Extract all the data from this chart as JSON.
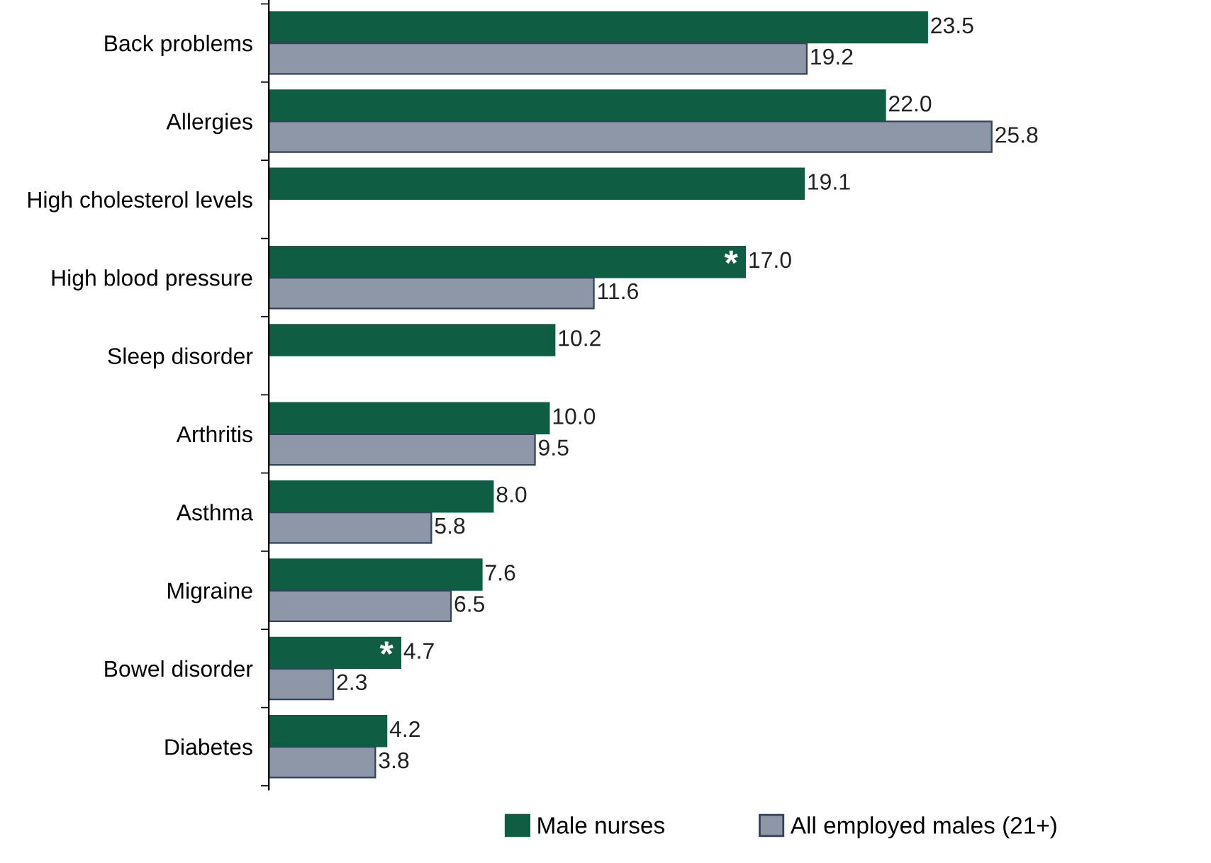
{
  "chart_data": {
    "type": "bar",
    "orientation": "horizontal",
    "categories": [
      "Back problems",
      "Allergies",
      "High cholesterol levels",
      "High blood pressure",
      "Sleep disorder",
      "Arthritis",
      "Asthma",
      "Migraine",
      "Bowel disorder",
      "Diabetes"
    ],
    "series": [
      {
        "name": "Male nurses",
        "color": "#0f5e44",
        "values": [
          23.5,
          22.0,
          19.1,
          17.0,
          10.2,
          10.0,
          8.0,
          7.6,
          4.7,
          4.2
        ],
        "value_labels": [
          "23.5",
          "22.0",
          "19.1",
          "17.0",
          "10.2",
          "10.0",
          "8.0",
          "7.6",
          "4.7",
          "4.2"
        ]
      },
      {
        "name": "All employed males (21+)",
        "color": "#8e97a8",
        "values": [
          19.2,
          25.8,
          null,
          11.6,
          null,
          9.5,
          5.8,
          6.5,
          2.3,
          3.8
        ],
        "value_labels": [
          "19.2",
          "25.8",
          null,
          "11.6",
          null,
          "9.5",
          "5.8",
          "6.5",
          "2.3",
          "3.8"
        ]
      }
    ],
    "annotations": [
      {
        "text": "*",
        "x": 17.0,
        "y": "High blood pressure"
      },
      {
        "text": "*",
        "x": 4.7,
        "y": "Bowel disorder"
      }
    ],
    "legend": "bottom",
    "tick_labels": "y"
  }
}
